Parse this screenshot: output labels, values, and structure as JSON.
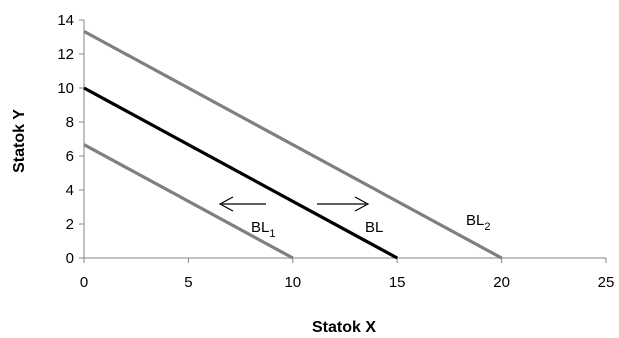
{
  "chart_data": {
    "type": "line",
    "xlabel": "Statok X",
    "ylabel": "Statok Y",
    "xlim": [
      0,
      25
    ],
    "ylim": [
      0,
      14
    ],
    "xticks": [
      0,
      5,
      10,
      15,
      20,
      25
    ],
    "yticks": [
      0,
      2,
      4,
      6,
      8,
      10,
      12,
      14
    ],
    "grid": false,
    "series": [
      {
        "name": "BL1",
        "label_main": "BL",
        "label_sub": "1",
        "color": "#7f7f7f",
        "x": [
          0,
          10
        ],
        "y": [
          6.67,
          0
        ]
      },
      {
        "name": "BL",
        "label_main": "BL",
        "label_sub": "",
        "color": "#000000",
        "x": [
          0,
          15
        ],
        "y": [
          10,
          0
        ]
      },
      {
        "name": "BL2",
        "label_main": "BL",
        "label_sub": "2",
        "color": "#7f7f7f",
        "x": [
          0,
          20
        ],
        "y": [
          13.33,
          0
        ]
      }
    ],
    "annotations": [
      {
        "type": "arrow",
        "direction": "left"
      },
      {
        "type": "arrow",
        "direction": "right"
      }
    ]
  }
}
